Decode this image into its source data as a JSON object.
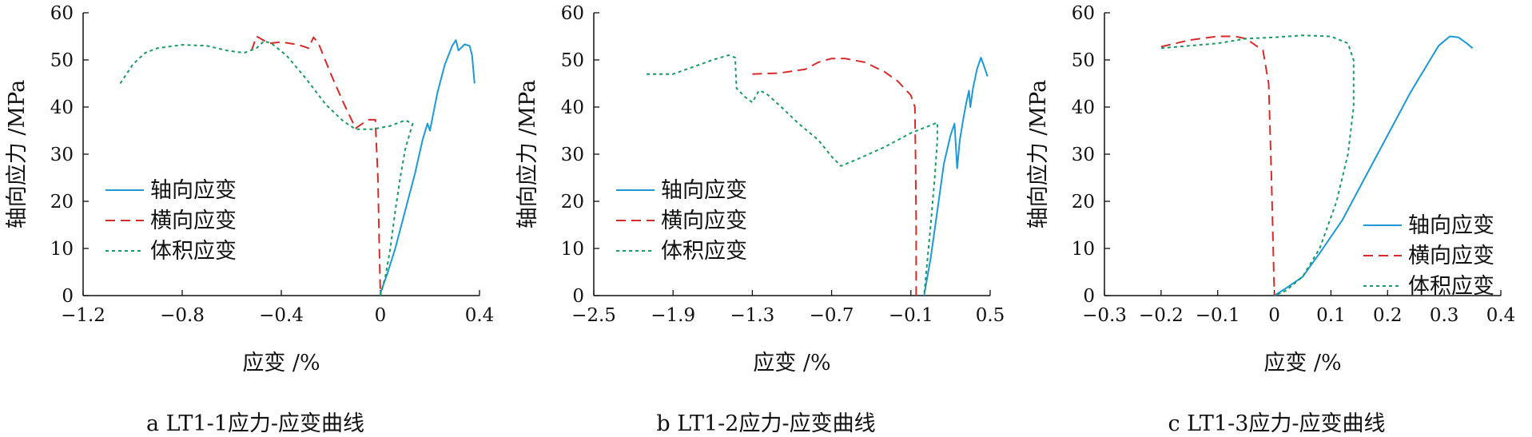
{
  "colors": {
    "axial": "#1b9ad6",
    "lateral": "#d62b2b",
    "volumetric": "#1a9b63",
    "axis": "#111111"
  },
  "chart_data": [
    {
      "type": "line",
      "caption": "a LT1-1应力-应变曲线",
      "xlabel": "应变 /%",
      "ylabel": "轴向应力 /MPa",
      "xlim": [
        -1.2,
        0.4
      ],
      "ylim": [
        0,
        60
      ],
      "xticks": [
        "−1.2",
        "−0.8",
        "−0.4",
        "0",
        "0.4"
      ],
      "yticks": [
        "0",
        "10",
        "20",
        "30",
        "40",
        "50",
        "60"
      ],
      "legend_position": "center-left",
      "grid": false,
      "series": [
        {
          "name": "轴向应变",
          "style": "solid",
          "points": [
            [
              0,
              0.5
            ],
            [
              0.03,
              5
            ],
            [
              0.06,
              10
            ],
            [
              0.1,
              18
            ],
            [
              0.14,
              26
            ],
            [
              0.17,
              33
            ],
            [
              0.19,
              36.5
            ],
            [
              0.2,
              35
            ],
            [
              0.23,
              43
            ],
            [
              0.26,
              49
            ],
            [
              0.29,
              53
            ],
            [
              0.305,
              54.2
            ],
            [
              0.315,
              52
            ],
            [
              0.34,
              53.3
            ],
            [
              0.36,
              53
            ],
            [
              0.37,
              51
            ],
            [
              0.38,
              45
            ]
          ]
        },
        {
          "name": "横向应变",
          "style": "dashed",
          "points": [
            [
              -0.52,
              52
            ],
            [
              -0.5,
              55
            ],
            [
              -0.45,
              53.5
            ],
            [
              -0.4,
              53.8
            ],
            [
              -0.33,
              53.2
            ],
            [
              -0.29,
              52.5
            ],
            [
              -0.27,
              54.8
            ],
            [
              -0.25,
              53.5
            ],
            [
              -0.2,
              47
            ],
            [
              -0.15,
              41
            ],
            [
              -0.1,
              35.5
            ],
            [
              -0.05,
              37.3
            ],
            [
              -0.02,
              37.3
            ],
            [
              -0.02,
              36.5
            ],
            [
              -0.01,
              25
            ],
            [
              -0.005,
              12
            ],
            [
              0,
              0
            ]
          ]
        },
        {
          "name": "体积应变",
          "style": "dotted",
          "points": [
            [
              -1.05,
              45
            ],
            [
              -1.0,
              49
            ],
            [
              -0.95,
              51.5
            ],
            [
              -0.9,
              52.5
            ],
            [
              -0.8,
              53.2
            ],
            [
              -0.7,
              53
            ],
            [
              -0.62,
              52
            ],
            [
              -0.55,
              51.5
            ],
            [
              -0.5,
              52.5
            ],
            [
              -0.47,
              54
            ],
            [
              -0.44,
              53.5
            ],
            [
              -0.38,
              51
            ],
            [
              -0.3,
              46
            ],
            [
              -0.22,
              40.5
            ],
            [
              -0.15,
              37
            ],
            [
              -0.1,
              35.3
            ],
            [
              -0.03,
              35.3
            ],
            [
              0.04,
              36
            ],
            [
              0.1,
              37.2
            ],
            [
              0.13,
              36.5
            ],
            [
              0.1,
              31
            ],
            [
              0.08,
              25
            ],
            [
              0.06,
              18
            ],
            [
              0.04,
              10
            ],
            [
              0.02,
              4
            ],
            [
              0,
              0
            ]
          ]
        }
      ]
    },
    {
      "type": "line",
      "caption": "b LT1-2应力-应变曲线",
      "xlabel": "应变 /%",
      "ylabel": "轴向应力 /MPa",
      "xlim": [
        -2.5,
        0.5
      ],
      "ylim": [
        0,
        60
      ],
      "xticks": [
        "−2.5",
        "−1.9",
        "−1.3",
        "−0.7",
        "−0.1",
        "0.5"
      ],
      "yticks": [
        "0",
        "10",
        "20",
        "30",
        "40",
        "50",
        "60"
      ],
      "legend_position": "center-left",
      "grid": false,
      "series": [
        {
          "name": "轴向应变",
          "style": "solid",
          "points": [
            [
              0,
              0
            ],
            [
              0.05,
              8
            ],
            [
              0.1,
              18
            ],
            [
              0.15,
              28
            ],
            [
              0.2,
              34
            ],
            [
              0.23,
              36.5
            ],
            [
              0.25,
              27
            ],
            [
              0.27,
              33
            ],
            [
              0.3,
              38
            ],
            [
              0.32,
              41
            ],
            [
              0.34,
              43.5
            ],
            [
              0.35,
              40
            ],
            [
              0.37,
              44
            ],
            [
              0.4,
              48
            ],
            [
              0.43,
              50.5
            ],
            [
              0.45,
              49
            ],
            [
              0.48,
              46.5
            ]
          ]
        },
        {
          "name": "横向应变",
          "style": "dashed",
          "points": [
            [
              -1.3,
              47
            ],
            [
              -1.1,
              47.2
            ],
            [
              -0.9,
              48
            ],
            [
              -0.8,
              49.5
            ],
            [
              -0.7,
              50.3
            ],
            [
              -0.6,
              50.3
            ],
            [
              -0.45,
              49.5
            ],
            [
              -0.3,
              47.5
            ],
            [
              -0.2,
              45.5
            ],
            [
              -0.1,
              42.5
            ],
            [
              -0.07,
              40
            ],
            [
              -0.065,
              30
            ],
            [
              -0.06,
              15
            ],
            [
              -0.06,
              0
            ]
          ]
        },
        {
          "name": "体积应变",
          "style": "dotted",
          "points": [
            [
              -2.1,
              47
            ],
            [
              -1.9,
              47
            ],
            [
              -1.75,
              48.5
            ],
            [
              -1.6,
              50
            ],
            [
              -1.48,
              51
            ],
            [
              -1.43,
              50.5
            ],
            [
              -1.42,
              44
            ],
            [
              -1.35,
              42
            ],
            [
              -1.3,
              41
            ],
            [
              -1.25,
              43.5
            ],
            [
              -1.2,
              43
            ],
            [
              -1.1,
              40.5
            ],
            [
              -0.95,
              36.5
            ],
            [
              -0.8,
              33
            ],
            [
              -0.7,
              29.5
            ],
            [
              -0.63,
              27.5
            ],
            [
              -0.5,
              29
            ],
            [
              -0.3,
              31.5
            ],
            [
              -0.1,
              34.5
            ],
            [
              0.1,
              36.7
            ],
            [
              0.1,
              33
            ],
            [
              0.08,
              25
            ],
            [
              0.05,
              15
            ],
            [
              0.02,
              6
            ],
            [
              0,
              0
            ]
          ]
        }
      ]
    },
    {
      "type": "line",
      "caption": "c LT1-3应力-应变曲线",
      "xlabel": "应变 /%",
      "ylabel": "轴向应力 /MPa",
      "xlim": [
        -0.3,
        0.4
      ],
      "ylim": [
        0,
        60
      ],
      "xticks": [
        "−0.3",
        "−0.2",
        "−0.1",
        "0",
        "0.1",
        "0.2",
        "0.3",
        "0.4"
      ],
      "yticks": [
        "0",
        "10",
        "20",
        "30",
        "40",
        "50",
        "60"
      ],
      "legend_position": "bottom-right",
      "grid": false,
      "series": [
        {
          "name": "轴向应变",
          "style": "solid",
          "points": [
            [
              0,
              0
            ],
            [
              0.02,
              1.5
            ],
            [
              0.05,
              4
            ],
            [
              0.08,
              9
            ],
            [
              0.12,
              16
            ],
            [
              0.16,
              25
            ],
            [
              0.2,
              34
            ],
            [
              0.24,
              43
            ],
            [
              0.27,
              49
            ],
            [
              0.29,
              53
            ],
            [
              0.31,
              55
            ],
            [
              0.325,
              54.8
            ],
            [
              0.34,
              53.5
            ],
            [
              0.35,
              52.5
            ]
          ]
        },
        {
          "name": "横向应变",
          "style": "dashed",
          "points": [
            [
              -0.2,
              52.8
            ],
            [
              -0.15,
              54.2
            ],
            [
              -0.1,
              55
            ],
            [
              -0.07,
              55
            ],
            [
              -0.05,
              54.5
            ],
            [
              -0.02,
              52
            ],
            [
              -0.01,
              45
            ],
            [
              -0.005,
              25
            ],
            [
              0,
              0
            ]
          ]
        },
        {
          "name": "体积应变",
          "style": "dotted",
          "points": [
            [
              -0.2,
              52.5
            ],
            [
              -0.1,
              53.5
            ],
            [
              -0.05,
              54.5
            ],
            [
              0,
              54.8
            ],
            [
              0.05,
              55.2
            ],
            [
              0.1,
              55
            ],
            [
              0.13,
              53.5
            ],
            [
              0.14,
              50
            ],
            [
              0.14,
              40
            ],
            [
              0.13,
              30
            ],
            [
              0.11,
              20
            ],
            [
              0.08,
              10
            ],
            [
              0.05,
              4
            ],
            [
              0.02,
              1
            ],
            [
              0,
              0
            ]
          ]
        }
      ]
    }
  ]
}
